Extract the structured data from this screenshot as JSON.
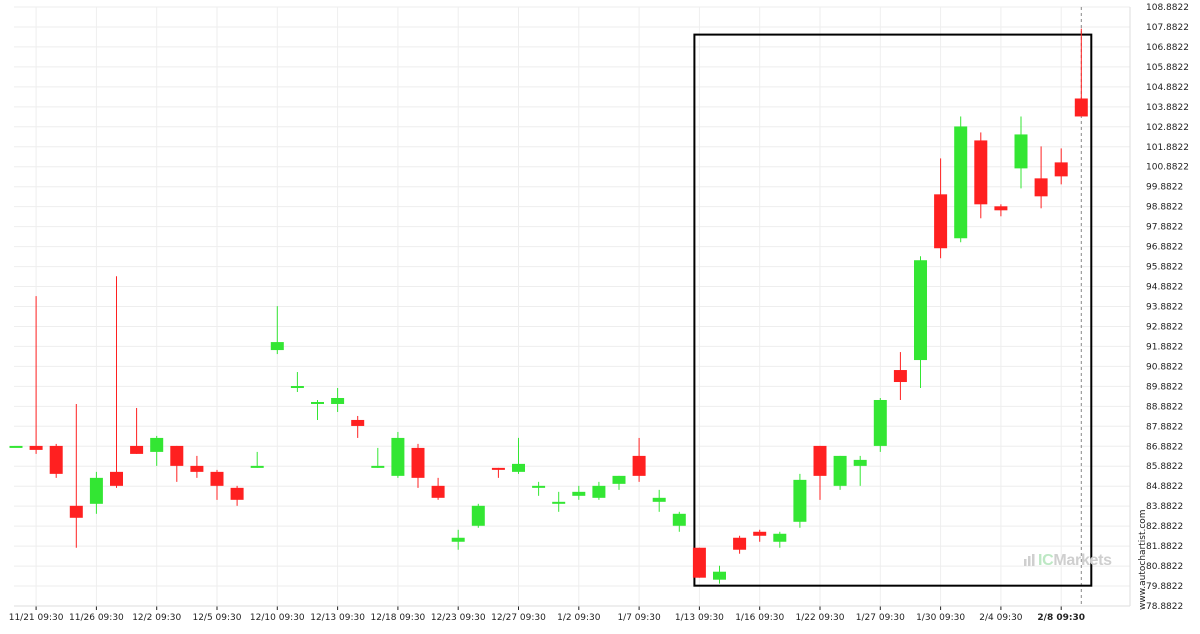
{
  "watermark": "www.autochartist.com",
  "brand": {
    "prefix": "IC",
    "name": "Markets"
  },
  "colors": {
    "up": "#33e633",
    "down": "#ff2020",
    "grid": "#eeeeee",
    "box": "#000000",
    "axis": "#222222"
  },
  "chart_data": {
    "type": "candlestick",
    "ylim": [
      78.8822,
      108.8822
    ],
    "y_ticks": [
      "108.8822",
      "107.8822",
      "106.8822",
      "105.8822",
      "104.8822",
      "103.8822",
      "102.8822",
      "101.8822",
      "100.8822",
      "99.8822",
      "98.8822",
      "97.8822",
      "96.8822",
      "95.8822",
      "94.8822",
      "93.8822",
      "92.8822",
      "91.8822",
      "90.8822",
      "89.8822",
      "88.8822",
      "87.8822",
      "86.8822",
      "85.8822",
      "84.8822",
      "83.8822",
      "82.8822",
      "81.8822",
      "80.8822",
      "79.8822",
      "78.8822"
    ],
    "x_labels": [
      "11/21 09:30",
      "11/26 09:30",
      "12/2 09:30",
      "12/5 09:30",
      "12/10 09:30",
      "12/13 09:30",
      "12/18 09:30",
      "12/23 09:30",
      "12/27 09:30",
      "1/2 09:30",
      "1/7 09:30",
      "1/13 09:30",
      "1/16 09:30",
      "1/22 09:30",
      "1/27 09:30",
      "1/30 09:30",
      "2/4 09:30",
      "2/8 09:30"
    ],
    "x_label_candle_index": [
      1,
      4,
      7,
      10,
      13,
      16,
      19,
      22,
      25,
      28,
      31,
      34,
      37,
      40,
      43,
      46,
      49,
      52
    ],
    "highlighted_label": "2/8 09:30",
    "candles": [
      {
        "o": 86.9,
        "h": 86.9,
        "l": 86.9,
        "c": 86.9
      },
      {
        "o": 86.9,
        "h": 94.4,
        "l": 86.5,
        "c": 86.7
      },
      {
        "o": 86.9,
        "h": 87.0,
        "l": 85.3,
        "c": 85.5
      },
      {
        "o": 83.9,
        "h": 89.0,
        "l": 81.8,
        "c": 83.3
      },
      {
        "o": 84.0,
        "h": 85.6,
        "l": 83.5,
        "c": 85.3
      },
      {
        "o": 85.6,
        "h": 95.4,
        "l": 84.8,
        "c": 84.9
      },
      {
        "o": 86.9,
        "h": 88.8,
        "l": 86.5,
        "c": 86.5
      },
      {
        "o": 86.6,
        "h": 87.4,
        "l": 85.9,
        "c": 87.3
      },
      {
        "o": 86.9,
        "h": 86.9,
        "l": 85.1,
        "c": 85.9
      },
      {
        "o": 85.9,
        "h": 86.4,
        "l": 85.3,
        "c": 85.6
      },
      {
        "o": 85.6,
        "h": 85.7,
        "l": 84.2,
        "c": 84.9
      },
      {
        "o": 84.8,
        "h": 84.9,
        "l": 83.9,
        "c": 84.2
      },
      {
        "o": 85.9,
        "h": 86.6,
        "l": 85.8,
        "c": 85.9
      },
      {
        "o": 91.7,
        "h": 93.9,
        "l": 91.5,
        "c": 92.1
      },
      {
        "o": 89.9,
        "h": 90.6,
        "l": 89.6,
        "c": 89.9
      },
      {
        "o": 89.0,
        "h": 89.2,
        "l": 88.2,
        "c": 89.1
      },
      {
        "o": 89.0,
        "h": 89.8,
        "l": 88.6,
        "c": 89.3
      },
      {
        "o": 88.2,
        "h": 88.4,
        "l": 87.3,
        "c": 87.9
      },
      {
        "o": 85.9,
        "h": 86.8,
        "l": 85.8,
        "c": 85.9
      },
      {
        "o": 85.4,
        "h": 87.6,
        "l": 85.3,
        "c": 87.3
      },
      {
        "o": 86.8,
        "h": 87.0,
        "l": 84.8,
        "c": 85.3
      },
      {
        "o": 84.9,
        "h": 85.3,
        "l": 84.2,
        "c": 84.3
      },
      {
        "o": 82.1,
        "h": 82.7,
        "l": 81.7,
        "c": 82.3
      },
      {
        "o": 82.9,
        "h": 84.0,
        "l": 82.8,
        "c": 83.9
      },
      {
        "o": 85.8,
        "h": 85.8,
        "l": 85.3,
        "c": 85.7
      },
      {
        "o": 85.6,
        "h": 87.3,
        "l": 85.5,
        "c": 86.0
      },
      {
        "o": 84.9,
        "h": 85.1,
        "l": 84.4,
        "c": 84.9
      },
      {
        "o": 84.1,
        "h": 84.6,
        "l": 83.6,
        "c": 84.1
      },
      {
        "o": 84.4,
        "h": 84.9,
        "l": 84.2,
        "c": 84.6
      },
      {
        "o": 84.3,
        "h": 85.1,
        "l": 84.2,
        "c": 84.9
      },
      {
        "o": 85.0,
        "h": 85.4,
        "l": 84.7,
        "c": 85.4
      },
      {
        "o": 86.4,
        "h": 87.3,
        "l": 85.1,
        "c": 85.4
      },
      {
        "o": 84.1,
        "h": 84.7,
        "l": 83.6,
        "c": 84.3
      },
      {
        "o": 82.9,
        "h": 83.6,
        "l": 82.6,
        "c": 83.5
      },
      {
        "o": 81.8,
        "h": 81.8,
        "l": 80.3,
        "c": 80.3
      },
      {
        "o": 80.2,
        "h": 80.9,
        "l": 80.0,
        "c": 80.6
      },
      {
        "o": 82.3,
        "h": 82.4,
        "l": 81.5,
        "c": 81.7
      },
      {
        "o": 82.6,
        "h": 82.7,
        "l": 82.1,
        "c": 82.4
      },
      {
        "o": 82.1,
        "h": 82.6,
        "l": 81.8,
        "c": 82.5
      },
      {
        "o": 83.1,
        "h": 85.5,
        "l": 82.8,
        "c": 85.2
      },
      {
        "o": 86.9,
        "h": 86.9,
        "l": 84.2,
        "c": 85.4
      },
      {
        "o": 84.9,
        "h": 86.4,
        "l": 84.7,
        "c": 86.4
      },
      {
        "o": 85.9,
        "h": 86.4,
        "l": 84.9,
        "c": 86.2
      },
      {
        "o": 86.9,
        "h": 89.3,
        "l": 86.6,
        "c": 89.2
      },
      {
        "o": 90.7,
        "h": 91.6,
        "l": 89.2,
        "c": 90.1
      },
      {
        "o": 91.2,
        "h": 96.4,
        "l": 89.8,
        "c": 96.2
      },
      {
        "o": 99.5,
        "h": 101.3,
        "l": 96.3,
        "c": 96.8
      },
      {
        "o": 97.3,
        "h": 103.4,
        "l": 97.1,
        "c": 102.9
      },
      {
        "o": 102.2,
        "h": 102.6,
        "l": 98.3,
        "c": 99.0
      },
      {
        "o": 98.9,
        "h": 99.0,
        "l": 98.4,
        "c": 98.7
      },
      {
        "o": 100.8,
        "h": 103.4,
        "l": 99.8,
        "c": 102.5
      },
      {
        "o": 100.3,
        "h": 101.9,
        "l": 98.8,
        "c": 99.4
      },
      {
        "o": 101.1,
        "h": 101.8,
        "l": 100.0,
        "c": 100.4
      },
      {
        "o": 104.3,
        "h": 107.8,
        "l": 103.6,
        "c": 103.4
      }
    ]
  }
}
